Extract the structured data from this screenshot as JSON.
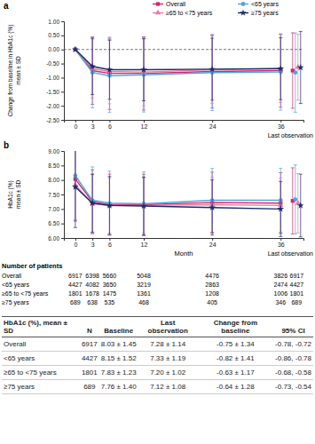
{
  "chart_data": [
    {
      "type": "line",
      "title": "a",
      "ylabel": [
        "Change from baseline in HbA1c (%)",
        "mean ± SD"
      ],
      "last_observation_label": "Last observation",
      "x": [
        0,
        3,
        6,
        12,
        24,
        36
      ],
      "xlim": [
        -2,
        40
      ],
      "xticks": [
        0,
        3,
        6,
        12,
        24,
        36
      ],
      "ylim": [
        -2.5,
        1
      ],
      "yticks": [
        {
          "value": -2.5,
          "label": "-2.50"
        },
        {
          "value": -2,
          "label": "-2.00"
        },
        {
          "value": -1.5,
          "label": "-1.50"
        },
        {
          "value": -1,
          "label": "-1.00"
        },
        {
          "value": -0.5,
          "label": "-0.50"
        },
        {
          "value": 0,
          "label": "0.00"
        },
        {
          "value": 0.5,
          "label": "0.50"
        },
        {
          "value": 1,
          "label": "1.00"
        }
      ],
      "reference_line": 0,
      "legend": "top-right",
      "series": [
        {
          "name": "Overall",
          "color": "#d6246e",
          "marker": "square",
          "values": [
            0,
            -0.75,
            -0.85,
            -0.85,
            -0.78,
            -0.75
          ],
          "errors": [
            null,
            1.2,
            1.28,
            1.3,
            1.3,
            1.3
          ],
          "last_observation": -0.75,
          "last_observation_error": 1.34
        },
        {
          "name": "<65 years",
          "color": "#4ca6dd",
          "marker": "circle",
          "values": [
            0,
            -0.82,
            -0.93,
            -0.9,
            -0.82,
            -0.8
          ],
          "errors": [
            null,
            1.25,
            1.3,
            1.32,
            1.35,
            1.35
          ],
          "last_observation": -0.82,
          "last_observation_error": 1.41
        },
        {
          "name": "≥65 to <75 years",
          "color": "#e87ba3",
          "marker": "triangle",
          "values": [
            0,
            -0.68,
            -0.78,
            -0.8,
            -0.72,
            -0.68
          ],
          "errors": [
            null,
            1.05,
            1.15,
            1.2,
            1.2,
            1.2
          ],
          "last_observation": -0.63,
          "last_observation_error": 1.17
        },
        {
          "name": "≥75 years",
          "color": "#1b2b6b",
          "marker": "star",
          "values": [
            0,
            -0.6,
            -0.72,
            -0.72,
            -0.7,
            -0.68
          ],
          "errors": [
            null,
            1.0,
            1.05,
            1.1,
            1.1,
            1.1
          ],
          "last_observation": -0.64,
          "last_observation_error": 1.28
        }
      ]
    },
    {
      "type": "line",
      "title": "b",
      "ylabel": [
        "HbA1c (%)",
        "mean ± SD"
      ],
      "xlabel": "Month",
      "last_observation_label": "Last observation",
      "x": [
        0,
        3,
        6,
        12,
        24,
        36
      ],
      "xlim": [
        -2,
        40
      ],
      "xticks": [
        0,
        3,
        6,
        12,
        24,
        36
      ],
      "ylim": [
        6,
        9
      ],
      "yticks": [
        {
          "value": 6,
          "label": "6.00"
        },
        {
          "value": 6.5,
          "label": "6.50"
        },
        {
          "value": 7,
          "label": "7.00"
        },
        {
          "value": 7.5,
          "label": "7.50"
        },
        {
          "value": 8,
          "label": "8.00"
        },
        {
          "value": 8.5,
          "label": "8.50"
        },
        {
          "value": 9,
          "label": "9.00"
        }
      ],
      "series": [
        {
          "color": "#d6246e",
          "marker": "square",
          "values": [
            8.03,
            7.25,
            7.15,
            7.15,
            7.22,
            7.2
          ],
          "errors": [
            1.45,
            1.1,
            1.05,
            1.05,
            1.05,
            1.05
          ],
          "last_observation": 7.28,
          "last_observation_error": 1.14
        },
        {
          "color": "#4ca6dd",
          "marker": "circle",
          "values": [
            8.15,
            7.3,
            7.2,
            7.18,
            7.3,
            7.3
          ],
          "errors": [
            1.52,
            1.15,
            1.1,
            1.1,
            1.1,
            1.1
          ],
          "last_observation": 7.33,
          "last_observation_error": 1.19
        },
        {
          "color": "#e87ba3",
          "marker": "triangle",
          "values": [
            7.83,
            7.18,
            7.12,
            7.12,
            7.15,
            7.12
          ],
          "errors": [
            1.23,
            1.0,
            0.95,
            0.95,
            0.95,
            0.95
          ],
          "last_observation": 7.2,
          "last_observation_error": 1.02
        },
        {
          "color": "#1b2b6b",
          "marker": "star",
          "values": [
            7.76,
            7.2,
            7.12,
            7.1,
            7.05,
            7.0
          ],
          "errors": [
            1.4,
            1.0,
            1.0,
            1.0,
            0.95,
            0.95
          ],
          "last_observation": 7.12,
          "last_observation_error": 1.08
        }
      ]
    }
  ],
  "patients": {
    "title": "Number of patients",
    "rows": [
      {
        "label": "Overall",
        "values": [
          6917,
          6398,
          5660,
          5048,
          4476,
          3826,
          6917
        ]
      },
      {
        "label": "<65 years",
        "values": [
          4427,
          4082,
          3650,
          3219,
          2863,
          2474,
          4427
        ]
      },
      {
        "label": "≥65 to <75 years",
        "values": [
          1801,
          1678,
          1475,
          1361,
          1208,
          1006,
          1801
        ]
      },
      {
        "label": "≥75 years",
        "values": [
          689,
          638,
          535,
          468,
          405,
          346,
          689
        ]
      }
    ]
  },
  "table": {
    "header": [
      "HbA1c (%), mean ± SD",
      "N",
      "Baseline",
      "Last observation",
      "Change from baseline",
      "95% CI"
    ],
    "rows": [
      [
        "Overall",
        6917,
        "8.03 ± 1.45",
        "7.28 ± 1.14",
        "-0.75 ± 1.34",
        "-0.78, -0.72"
      ],
      [
        "<65 years",
        4427,
        "8.15 ± 1.52",
        "7.33 ± 1.19",
        "-0.82 ± 1.41",
        "-0.86, -0.78"
      ],
      [
        "≥65 to <75 years",
        1801,
        "7.83 ± 1.23",
        "7.20 ± 1.02",
        "-0.63 ± 1.17",
        "-0.68, -0.58"
      ],
      [
        "≥75 years",
        689,
        "7.76 ± 1.40",
        "7.12 ± 1.08",
        "-0.64 ± 1.28",
        "-0.73, -0.54"
      ]
    ]
  }
}
